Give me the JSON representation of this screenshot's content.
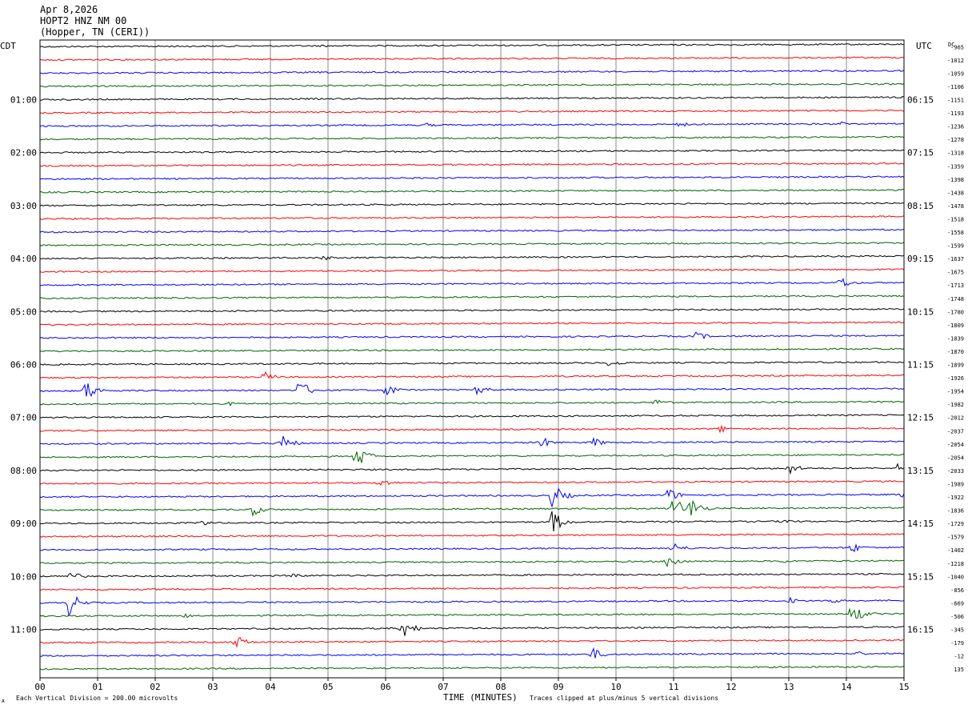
{
  "header": {
    "date": "Apr 8,2026",
    "station": "HOPT2 HNZ NM 00",
    "location": "(Hopper, TN (CERI))"
  },
  "chart_data": {
    "type": "line",
    "title": "HOPT2 HNZ NM 00",
    "xlabel": "TIME (MINUTES)",
    "xlim": [
      0,
      15
    ],
    "x_ticks": [
      "00",
      "01",
      "02",
      "03",
      "04",
      "05",
      "06",
      "07",
      "08",
      "09",
      "10",
      "11",
      "12",
      "13",
      "14",
      "15"
    ],
    "left_axis_label": "CDT",
    "right_axis_label": "UTC",
    "dc_label": "DC",
    "left_time_labels": [
      "01:00",
      "02:00",
      "03:00",
      "04:00",
      "05:00",
      "06:00",
      "07:00",
      "08:00",
      "09:00",
      "10:00",
      "11:00"
    ],
    "right_time_labels": [
      "06:15",
      "07:15",
      "08:15",
      "09:15",
      "10:15",
      "11:15",
      "12:15",
      "13:15",
      "14:15",
      "15:15",
      "16:15"
    ],
    "time_label_every_n_traces": 4,
    "first_time_label_trace": 4,
    "dc_offsets": [
      -965,
      -1012,
      -1059,
      -1106,
      -1151,
      -1193,
      -1236,
      -1278,
      -1318,
      -1359,
      -1398,
      -1438,
      -1478,
      -1518,
      -1558,
      -1599,
      -1637,
      -1675,
      -1713,
      -1748,
      -1780,
      -1809,
      -1839,
      -1870,
      -1899,
      -1926,
      -1954,
      -1982,
      -2012,
      -2037,
      -2054,
      -2054,
      -2033,
      -1989,
      -1922,
      -1836,
      -1729,
      -1579,
      -1402,
      -1218,
      -1040,
      -856,
      -669,
      -506,
      -345,
      -179,
      -12,
      135
    ],
    "trace_colors": [
      "#000000",
      "#ff0000",
      "#0000ff",
      "#006400"
    ],
    "scale_text": "Each Vertical Division =  200.00 microvolts",
    "clip_text": "Traces clipped at plus/minus 5 vertical divisions",
    "corner_mark": "A",
    "grid": true,
    "events": [
      {
        "trace": 0,
        "minute": 4.9,
        "amp": 2
      },
      {
        "trace": 6,
        "minute": 6.7,
        "amp": 3
      },
      {
        "trace": 6,
        "minute": 11.1,
        "amp": 4
      },
      {
        "trace": 6,
        "minute": 13.9,
        "amp": 3
      },
      {
        "trace": 16,
        "minute": 4.9,
        "amp": 4
      },
      {
        "trace": 18,
        "minute": 13.9,
        "amp": 8
      },
      {
        "trace": 22,
        "minute": 11.4,
        "amp": 6
      },
      {
        "trace": 24,
        "minute": 9.9,
        "amp": 6
      },
      {
        "trace": 25,
        "minute": 3.9,
        "amp": 7
      },
      {
        "trace": 26,
        "minute": 0.8,
        "amp": 14
      },
      {
        "trace": 26,
        "minute": 4.5,
        "amp": 14
      },
      {
        "trace": 26,
        "minute": 6.0,
        "amp": 9
      },
      {
        "trace": 26,
        "minute": 7.6,
        "amp": 7
      },
      {
        "trace": 27,
        "minute": 10.7,
        "amp": 6
      },
      {
        "trace": 27,
        "minute": 3.3,
        "amp": 3
      },
      {
        "trace": 29,
        "minute": 11.8,
        "amp": 5
      },
      {
        "trace": 30,
        "minute": 4.2,
        "amp": 12
      },
      {
        "trace": 30,
        "minute": 8.7,
        "amp": 8
      },
      {
        "trace": 30,
        "minute": 9.6,
        "amp": 7
      },
      {
        "trace": 31,
        "minute": 5.5,
        "amp": 16
      },
      {
        "trace": 32,
        "minute": 13.0,
        "amp": 8
      },
      {
        "trace": 32,
        "minute": 14.9,
        "amp": 6
      },
      {
        "trace": 33,
        "minute": 5.9,
        "amp": 7
      },
      {
        "trace": 34,
        "minute": 10.9,
        "amp": 10
      },
      {
        "trace": 34,
        "minute": 8.9,
        "amp": 16
      },
      {
        "trace": 34,
        "minute": 15.0,
        "amp": 8
      },
      {
        "trace": 35,
        "minute": 3.7,
        "amp": 8
      },
      {
        "trace": 35,
        "minute": 11.0,
        "amp": 16
      },
      {
        "trace": 35,
        "minute": 11.3,
        "amp": 14
      },
      {
        "trace": 36,
        "minute": 8.9,
        "amp": 16
      },
      {
        "trace": 36,
        "minute": 2.8,
        "amp": 5
      },
      {
        "trace": 36,
        "minute": 12.9,
        "amp": 4
      },
      {
        "trace": 38,
        "minute": 14.1,
        "amp": 7
      },
      {
        "trace": 38,
        "minute": 11.0,
        "amp": 8
      },
      {
        "trace": 39,
        "minute": 10.9,
        "amp": 10
      },
      {
        "trace": 39,
        "minute": 12.9,
        "amp": 3
      },
      {
        "trace": 40,
        "minute": 0.5,
        "amp": 8
      },
      {
        "trace": 40,
        "minute": 4.4,
        "amp": 4
      },
      {
        "trace": 41,
        "minute": 2.3,
        "amp": 3
      },
      {
        "trace": 42,
        "minute": 0.5,
        "amp": 16
      },
      {
        "trace": 42,
        "minute": 13.0,
        "amp": 5
      },
      {
        "trace": 42,
        "minute": 13.7,
        "amp": 5
      },
      {
        "trace": 43,
        "minute": 14.1,
        "amp": 14
      },
      {
        "trace": 43,
        "minute": 2.5,
        "amp": 3
      },
      {
        "trace": 44,
        "minute": 6.3,
        "amp": 14
      },
      {
        "trace": 45,
        "minute": 3.4,
        "amp": 9
      },
      {
        "trace": 46,
        "minute": 9.6,
        "amp": 8
      },
      {
        "trace": 46,
        "minute": 14.2,
        "amp": 3
      }
    ]
  }
}
